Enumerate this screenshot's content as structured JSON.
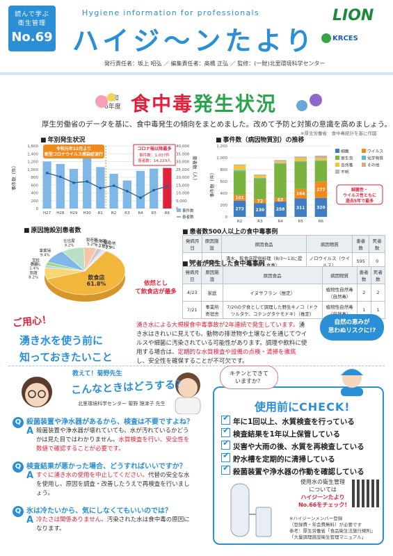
{
  "header": {
    "series_line1": "読んで学ぶ",
    "series_line2": "衛生管理",
    "issue": "No.69",
    "tagline": "Hygiene information for professionals",
    "brand": "ハイジ〜ンたより",
    "lion": "LION",
    "krces": "KRCES",
    "credits": "発行責任者：坂上 昭弘 ／ 編集責任者：高橋 正弘 ／ 監修：(一財)北里環境科学センター"
  },
  "title": {
    "reiwa_line1": "令和",
    "reiwa_line2": "6年度",
    "main_red": "食中毒",
    "main_green": "発生状況",
    "lead": "厚生労働省のデータを基に、食中毒発生の傾向をまとめました。改めて予防と対策の意識を高めましょう。",
    "source": "※厚生労働省　食中毒統計を基に作図"
  },
  "colors": {
    "accent": "#2b8fd6",
    "red": "#e0213b",
    "green": "#2aa34a",
    "orange": "#f08a1c"
  },
  "chart_data": [
    {
      "type": "bar",
      "section": "年別発生状況",
      "categories": [
        "H27",
        "H28",
        "H29",
        "H30",
        "R1",
        "R2",
        "R3",
        "R4",
        "R5",
        "R6"
      ],
      "series": [
        {
          "name": "事件数",
          "values": [
            1202,
            1139,
            1014,
            1330,
            1061,
            887,
            717,
            962,
            1021,
            1037
          ]
        },
        {
          "name": "患者数",
          "values": [
            22718,
            20252,
            16464,
            17282,
            13018,
            14613,
            11080,
            6856,
            11803,
            14229
          ]
        }
      ],
      "ylabel_left": "事件数（件）",
      "ylabel_right": "患者数（人）",
      "ylim_left": [
        0,
        1600
      ],
      "ylim_right": [
        0,
        40000
      ],
      "yticks_left": [
        "0",
        "200",
        "400",
        "600",
        "800",
        "1,000",
        "1,200",
        "1,400",
        "1,600"
      ],
      "yticks_right": [
        "0",
        "5,000",
        "10,000",
        "15,000",
        "20,000",
        "25,000",
        "30,000",
        "35,000",
        "40,000"
      ],
      "annotation_covid": "令和元年12月より新型コロナウイルス感染症流行",
      "annotation_peak_title": "コロナ禍以降最多",
      "annotation_peak_line1": "事件数：1,037件",
      "annotation_peak_line2": "患者数：14,229人"
    },
    {
      "type": "bar",
      "section": "事件数（病因物質別）の推移",
      "categories": [
        "R2",
        "R3",
        "R4",
        "R5",
        "R6"
      ],
      "series": [
        {
          "name": "細菌",
          "values": [
            273,
            230,
            258,
            311,
            320
          ]
        },
        {
          "name": "ウイルス",
          "values": [
            101,
            72,
            63,
            164,
            277
          ]
        },
        {
          "name": "寄生虫",
          "values": [
            395,
            348,
            577,
            456,
            348
          ]
        },
        {
          "name": "化学物質",
          "values": [
            20,
            10,
            12,
            10,
            12
          ]
        },
        {
          "name": "自然毒",
          "values": [
            82,
            40,
            30,
            50,
            40
          ]
        },
        {
          "name": "その他",
          "values": [
            10,
            10,
            14,
            20,
            20
          ]
        },
        {
          "name": "不明",
          "values": [
            6,
            7,
            8,
            10,
            20
          ]
        }
      ],
      "ylabel": "事件数（件）",
      "ylim": [
        0,
        1200
      ],
      "yticks": [
        "0",
        "200",
        "400",
        "600",
        "800",
        "1,000",
        "1,200"
      ],
      "callout": "細菌性・ウイルス性ともに過去5年で最多"
    },
    {
      "type": "pie",
      "section": "原因施設別患者数",
      "slices": [
        {
          "name": "飲食店",
          "value": 61.8
        },
        {
          "name": "旅館",
          "value": 8.2
        },
        {
          "name": "病院",
          "value": 1.4
        },
        {
          "name": "学校",
          "value": 2.6
        },
        {
          "name": "事業場",
          "value": 9.4
        },
        {
          "name": "仕出屋",
          "value": 9.2
        },
        {
          "name": "製造所",
          "value": 5.2
        },
        {
          "name": "販売店",
          "value": 0.1
        },
        {
          "name": "不明",
          "value": 2.0
        },
        {
          "name": "家庭",
          "value": 0.7
        },
        {
          "name": "その他",
          "value": 1.3
        }
      ],
      "callout": "依然として飲食店が最多"
    }
  ],
  "tables": {
    "over500": {
      "title": "患者数500人以上の食中毒事例",
      "headers": [
        "発病月日",
        "原因施設",
        "原因食品",
        "病因物質",
        "患者数",
        "死者数"
      ],
      "rows": [
        [
          "8/4",
          "飲食店",
          "漬水、飲食店提供料理（8/3〜13に提供された食事）",
          "ノロウイルス（ウイルス）",
          "595",
          "0"
        ]
      ]
    },
    "deaths": {
      "title": "死者が発生した食中毒事例",
      "headers": [
        "発病月日",
        "原因施設",
        "原因食品",
        "病因物質",
        "患者数",
        "死者数"
      ],
      "rows": [
        [
          "4/23",
          "家庭",
          "イヌサフラン（推定）",
          "植物性自然毒（自然毒）",
          "2",
          "2"
        ],
        [
          "7/21",
          "事業所寄宿舎",
          "7/20の夕食として調理した野生キノコ（ドクツルタケ、コテングタケモドキ）（推定）",
          "植物性自然毒（自然毒）",
          "1",
          "1"
        ]
      ]
    }
  },
  "notice": {
    "badge": "ご用心！",
    "title_line1": "湧き水を使う前に",
    "title_line2": "知っておきたいこと",
    "body_red1": "湧き水による大規模食中毒事故が2年連続で発生しています。",
    "body1": "湧き水はきれいに見えても、動物の排泄物や土壌などを通じてウイルスや細菌に汚染されている可能性があります。調理や飲料に使用する場合は、",
    "body_red2": "定期的な水質検査や設備の点検・清掃を徹底",
    "body2": "し、安全性を確保することが不可欠です。",
    "bubble_line1": "自然の恵みが",
    "bubble_line2": "思わぬリスクに!?"
  },
  "qa": {
    "kicker": "教えて！菊野先生",
    "title": "こんなときはどうする？",
    "teacher": "北里環境科学センター 菊野 理津子 先生",
    "items": [
      {
        "q": "殺菌装置や浄水器があるから、検査は不要ですよね？",
        "a1": "殺菌装置や浄水器が壊れていても、水が汚れているかどうかは見た目ではわかりません。",
        "a_red": "水質検査を行い、安全性を数値で確認することが必要です。",
        "a2": ""
      },
      {
        "q": "検査結果が悪かった場合、どうすればいいですか？",
        "a1": "",
        "a_red": "すぐに湧き水の使用を中止してください。",
        "a2": "代替の安全な水を使用し、原因を調査・改善したうえで再検査を行いましょう。"
      },
      {
        "q": "氷は冷たいから、気にしなくてもいいのでは？",
        "a1": "",
        "a_red": "冷たさは関係ありません。",
        "a2": "汚染された水は食中毒の原因になります。"
      }
    ]
  },
  "check": {
    "kitchen_line1": "キチンとできて",
    "kitchen_line2": "いますか？",
    "title_prefix": "使用前に",
    "title_check": "CHECK!",
    "items": [
      "年に1回以上、水質検査を行っている",
      "検査結果を1年以上保管している",
      "災害や大雨の後、水質を再検査している",
      "貯水槽を定期的に清掃している",
      "殺菌装置や浄水器の作動を確認している"
    ],
    "qr_line1": "使用水の衛生管理",
    "qr_line2": "については",
    "qr_line3": "ハイジーンたより",
    "qr_line4": "No.66をチェック!",
    "note1": "※ハイジーンメンバー登録",
    "note2": "（登録費・年会費無料）が必要です",
    "note3": "参考：厚生労働省「食品衛生法施行規則」",
    "note4": "「大量調理施設衛生管理マニュアル」"
  }
}
